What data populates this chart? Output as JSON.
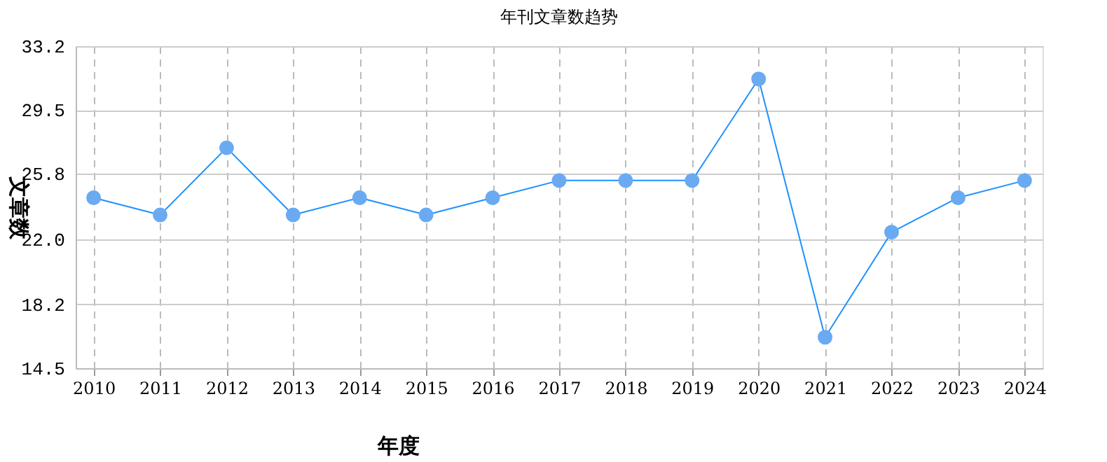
{
  "chart_data": {
    "type": "line",
    "title": "年刊文章数趋势",
    "xlabel": "年度",
    "ylabel": "文章数",
    "categories": [
      "2010",
      "2011",
      "2012",
      "2013",
      "2014",
      "2015",
      "2016",
      "2017",
      "2018",
      "2019",
      "2020",
      "2021",
      "2022",
      "2023",
      "2024"
    ],
    "series": [
      {
        "color": "#1e90ff",
        "values": [
          24.4,
          23.4,
          27.3,
          23.4,
          24.4,
          23.4,
          24.4,
          25.4,
          25.4,
          25.4,
          31.3,
          16.3,
          22.4,
          24.4,
          25.4
        ]
      }
    ],
    "ylim": [
      14.5,
      33.2
    ],
    "yticks": [
      {
        "value": 14.5,
        "label": "14.5"
      },
      {
        "value": 18.2,
        "label": "18.2"
      },
      {
        "value": 22.0,
        "label": "22.0"
      },
      {
        "value": 25.8,
        "label": "25.8"
      },
      {
        "value": 29.5,
        "label": "29.5"
      },
      {
        "value": 33.2,
        "label": "33.2"
      }
    ],
    "grid": true,
    "marker": "circle"
  }
}
